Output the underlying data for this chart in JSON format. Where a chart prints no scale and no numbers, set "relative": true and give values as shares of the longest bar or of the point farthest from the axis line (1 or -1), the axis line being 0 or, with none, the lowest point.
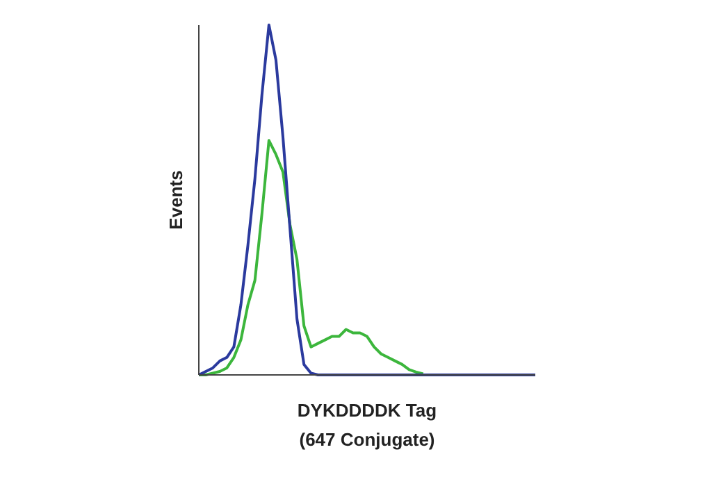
{
  "chart_data": {
    "type": "line",
    "relative": true,
    "xlabel": "DYKDDDDK Tag\n(647 Conjugate)",
    "ylabel": "Events",
    "marker": "none",
    "line_style": "solid",
    "categories": [
      null,
      null,
      null,
      null,
      null,
      null,
      null,
      null,
      null,
      null,
      null,
      null,
      null,
      null,
      null,
      null,
      null,
      null,
      null,
      null,
      null,
      null,
      null,
      null,
      null,
      null,
      null,
      null,
      null,
      null,
      null,
      null,
      null,
      null,
      null,
      null,
      null,
      null,
      null,
      null,
      null,
      null,
      null,
      null,
      null,
      null,
      null,
      null,
      null
    ],
    "series": [
      {
        "color": "#3cb63c",
        "values": [
          0,
          0,
          0.005,
          0.01,
          0.02,
          0.05,
          0.1,
          0.2,
          0.27,
          0.46,
          0.67,
          0.63,
          0.58,
          0.43,
          0.33,
          0.14,
          0.08,
          0.09,
          0.1,
          0.11,
          0.11,
          0.13,
          0.12,
          0.12,
          0.11,
          0.08,
          0.06,
          0.05,
          0.04,
          0.03,
          0.015,
          0.008,
          0.003,
          null,
          null,
          null,
          null,
          null,
          null,
          null,
          null,
          null,
          null,
          null,
          null,
          null,
          null,
          null,
          null
        ]
      },
      {
        "color": "#2b3a9e",
        "values": [
          0,
          0.01,
          0.02,
          0.04,
          0.05,
          0.08,
          0.2,
          0.37,
          0.56,
          0.8,
          1,
          0.9,
          0.68,
          0.42,
          0.16,
          0.03,
          0.005,
          0,
          0,
          0,
          0,
          0,
          0,
          0,
          0,
          0,
          0,
          0,
          0,
          0,
          0,
          0,
          0,
          0,
          0,
          0,
          0,
          0,
          0,
          0,
          0,
          0,
          0,
          0,
          0,
          0,
          0,
          0,
          0
        ]
      }
    ]
  }
}
